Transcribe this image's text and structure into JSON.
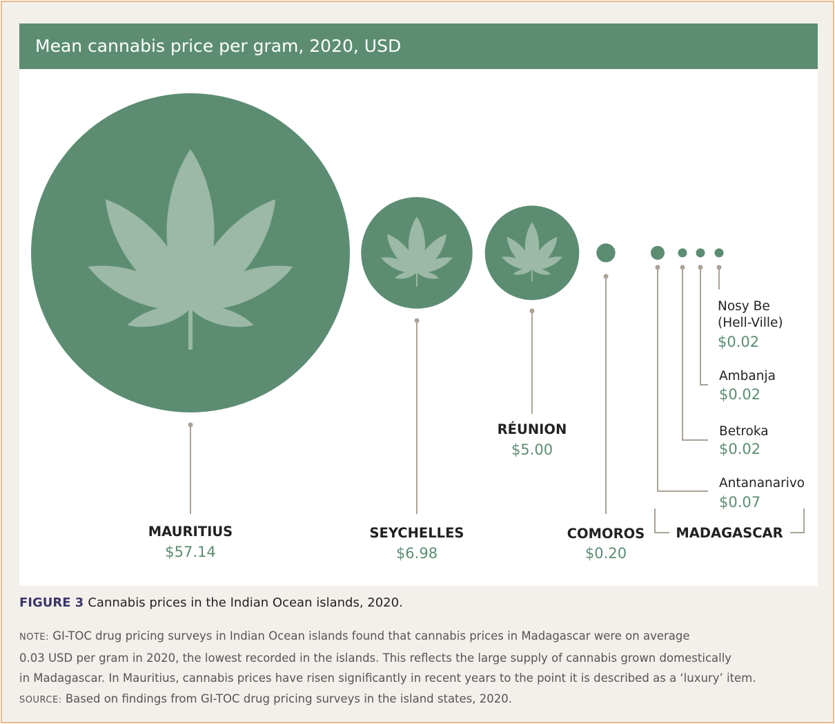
{
  "header": {
    "title": "Mean cannabis price per gram, 2020, USD"
  },
  "chart_data": {
    "type": "bubble",
    "title": "Mean cannabis price per gram, 2020, USD",
    "unit": "USD per gram",
    "series": [
      {
        "name": "MAURITIUS",
        "label": "$57.14",
        "value": 57.14,
        "group": ""
      },
      {
        "name": "SEYCHELLES",
        "label": "$6.98",
        "value": 6.98,
        "group": ""
      },
      {
        "name": "RÉUNION",
        "label": "$5.00",
        "value": 5.0,
        "group": ""
      },
      {
        "name": "COMOROS",
        "label": "$0.20",
        "value": 0.2,
        "group": ""
      },
      {
        "name": "Antananarivo",
        "label": "$0.07",
        "value": 0.07,
        "group": "MADAGASCAR"
      },
      {
        "name": "Betroka",
        "label": "$0.02",
        "value": 0.02,
        "group": "MADAGASCAR"
      },
      {
        "name": "Ambanja",
        "label": "$0.02",
        "value": 0.02,
        "group": "MADAGASCAR"
      },
      {
        "name": "Nosy Be (Hell-Ville)",
        "label_lines": [
          "Nosy Be",
          "(Hell-Ville)"
        ],
        "label": "$0.02",
        "value": 0.02,
        "group": "MADAGASCAR"
      }
    ],
    "group_label": "MADAGASCAR"
  },
  "caption": {
    "figure_label": "FIGURE 3",
    "text": "Cannabis prices in the Indian Ocean islands, 2020."
  },
  "note": {
    "note_label": "NOTE:",
    "note_line1": "GI-TOC drug pricing surveys in Indian Ocean islands found that cannabis prices in Madagascar were on average",
    "note_line2": "0.03 USD per gram in 2020, the lowest recorded in the islands. This reflects the large supply of cannabis grown domestically",
    "note_line3": "in Madagascar. In Mauritius, cannabis prices have risen significantly in recent years to the point it is described as a ‘luxury’ item.",
    "source_label": "SOURCE:",
    "source_text": "Based on findings from GI-TOC drug pricing surveys in the island states, 2020."
  },
  "colors": {
    "bubble": "#5c8d72",
    "leaf": "#9bb9a6",
    "value_text": "#5c8d72",
    "leader": "#aaa395",
    "title_bar": "#5c8d72",
    "frame_border": "#e8b98a"
  }
}
